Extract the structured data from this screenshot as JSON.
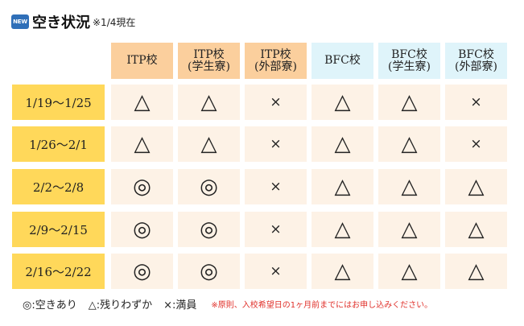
{
  "title": {
    "badge": "NEW",
    "text": "空き状況",
    "note": "※1/4現在"
  },
  "columns": [
    {
      "line1": "ITP校",
      "line2": "",
      "group": "itp"
    },
    {
      "line1": "ITP校",
      "line2": "(学生寮)",
      "group": "itp"
    },
    {
      "line1": "ITP校",
      "line2": "(外部寮)",
      "group": "itp"
    },
    {
      "line1": "BFC校",
      "line2": "",
      "group": "bfc"
    },
    {
      "line1": "BFC校",
      "line2": "(学生寮)",
      "group": "bfc"
    },
    {
      "line1": "BFC校",
      "line2": "(外部寮)",
      "group": "bfc"
    }
  ],
  "rows": [
    {
      "date": "1/19～1/25",
      "cells": [
        "△",
        "△",
        "×",
        "△",
        "△",
        "×"
      ]
    },
    {
      "date": "1/26～2/1",
      "cells": [
        "△",
        "△",
        "×",
        "△",
        "△",
        "×"
      ]
    },
    {
      "date": "2/2～2/8",
      "cells": [
        "◎",
        "◎",
        "×",
        "△",
        "△",
        "△"
      ]
    },
    {
      "date": "2/9～2/15",
      "cells": [
        "◎",
        "◎",
        "×",
        "△",
        "△",
        "△"
      ]
    },
    {
      "date": "2/16～2/22",
      "cells": [
        "◎",
        "◎",
        "×",
        "△",
        "△",
        "△"
      ]
    }
  ],
  "legend": {
    "items": [
      "◎:空きあり",
      "△:残りわずか",
      "×:満員"
    ],
    "note": "※原則、入校希望日の1ヶ月前までにはお申し込みください。"
  }
}
